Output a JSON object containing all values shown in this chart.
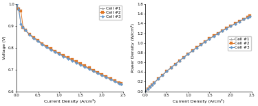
{
  "cell1_current": [
    0.0,
    0.05,
    0.1,
    0.15,
    0.2,
    0.3,
    0.4,
    0.5,
    0.6,
    0.7,
    0.8,
    0.9,
    1.0,
    1.1,
    1.2,
    1.3,
    1.4,
    1.5,
    1.6,
    1.7,
    1.8,
    1.9,
    2.0,
    2.1,
    2.2,
    2.3,
    2.4,
    2.45
  ],
  "cell1_voltage": [
    1.0,
    0.975,
    0.91,
    0.895,
    0.882,
    0.862,
    0.845,
    0.832,
    0.817,
    0.804,
    0.793,
    0.782,
    0.772,
    0.762,
    0.752,
    0.743,
    0.733,
    0.723,
    0.714,
    0.704,
    0.694,
    0.685,
    0.675,
    0.666,
    0.657,
    0.648,
    0.638,
    0.634
  ],
  "cell2_current": [
    0.0,
    0.05,
    0.1,
    0.15,
    0.2,
    0.3,
    0.4,
    0.5,
    0.6,
    0.7,
    0.8,
    0.9,
    1.0,
    1.1,
    1.2,
    1.3,
    1.4,
    1.5,
    1.6,
    1.7,
    1.8,
    1.9,
    2.0,
    2.1,
    2.2,
    2.3,
    2.4,
    2.45
  ],
  "cell2_voltage": [
    1.0,
    0.978,
    0.97,
    0.895,
    0.882,
    0.863,
    0.848,
    0.835,
    0.82,
    0.807,
    0.796,
    0.785,
    0.775,
    0.765,
    0.756,
    0.746,
    0.737,
    0.727,
    0.717,
    0.707,
    0.697,
    0.688,
    0.677,
    0.668,
    0.658,
    0.649,
    0.64,
    0.635
  ],
  "cell3_current": [
    0.0,
    0.05,
    0.1,
    0.15,
    0.2,
    0.3,
    0.4,
    0.5,
    0.6,
    0.7,
    0.8,
    0.9,
    1.0,
    1.1,
    1.2,
    1.3,
    1.4,
    1.5,
    1.6,
    1.7,
    1.8,
    1.9,
    2.0,
    2.1,
    2.2,
    2.3,
    2.4,
    2.45
  ],
  "cell3_voltage": [
    1.0,
    0.975,
    0.91,
    0.893,
    0.88,
    0.86,
    0.843,
    0.83,
    0.815,
    0.802,
    0.791,
    0.78,
    0.77,
    0.76,
    0.75,
    0.741,
    0.731,
    0.721,
    0.712,
    0.702,
    0.692,
    0.683,
    0.673,
    0.664,
    0.655,
    0.646,
    0.636,
    0.632
  ],
  "color_cell1": "#aaaaaa",
  "color_cell2": "#e07828",
  "color_cell3": "#6699cc",
  "marker_cell1": "^",
  "marker_cell2": "s",
  "marker_cell3": "D",
  "xlabel": "Current Density (A/cm²)",
  "ylabel_v": "Voltage (V)",
  "ylabel_p": "Power Density (W/cm²)",
  "xlim": [
    0,
    2.5
  ],
  "ylim_v": [
    0.6,
    1.0
  ],
  "ylim_p": [
    0,
    1.8
  ],
  "yticks_v": [
    0.6,
    0.7,
    0.8,
    0.9,
    1.0
  ],
  "yticks_p": [
    0,
    0.2,
    0.4,
    0.6,
    0.8,
    1.0,
    1.2,
    1.4,
    1.6,
    1.8
  ],
  "xticks": [
    0,
    0.5,
    1.0,
    1.5,
    2.0,
    2.5
  ],
  "legend_labels": [
    "Cell #1",
    "Cell #2",
    "Cell #3"
  ],
  "markersize": 2.2,
  "linewidth": 0.7,
  "fontsize_label": 4.5,
  "fontsize_tick": 4.0,
  "fontsize_legend": 4.2,
  "fig_width": 3.75,
  "fig_height": 1.55,
  "dpi": 100
}
